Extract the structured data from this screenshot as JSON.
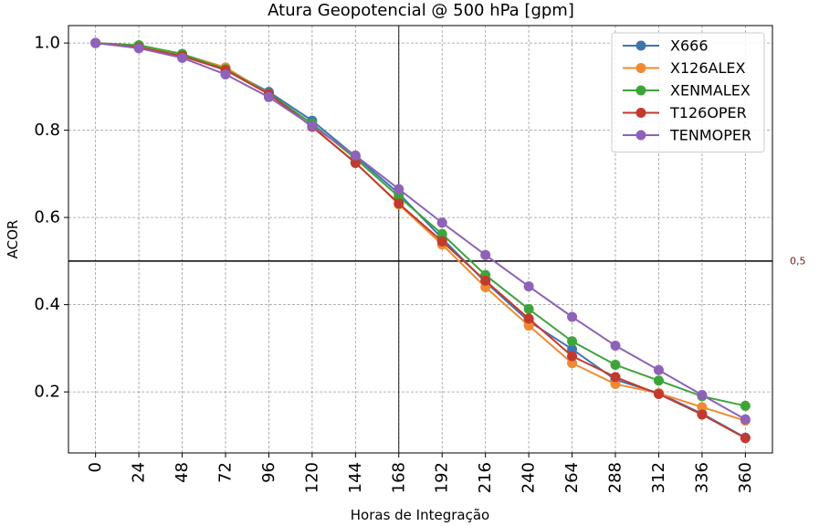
{
  "chart_data": {
    "type": "line",
    "title": "Atura Geopotencial @ 500 hPa [gpm]",
    "xlabel": "Horas de Integração",
    "ylabel": "ACOR",
    "x": [
      0,
      24,
      48,
      72,
      96,
      120,
      144,
      168,
      192,
      216,
      240,
      264,
      288,
      312,
      336,
      360
    ],
    "x_tick_labels": [
      "0",
      "24",
      "48",
      "72",
      "96",
      "120",
      "144",
      "168",
      "192",
      "216",
      "240",
      "264",
      "288",
      "312",
      "336",
      "360"
    ],
    "y_ticks": [
      0.2,
      0.4,
      0.6,
      0.8,
      1.0
    ],
    "y_tick_labels": [
      "0.2",
      "0.4",
      "0.6",
      "0.8",
      "1.0"
    ],
    "xlim": [
      -15,
      375
    ],
    "ylim": [
      0.06,
      1.04
    ],
    "grid": true,
    "legend_position": "top-right",
    "reference_lines": {
      "horizontal": {
        "y": 0.5,
        "label": "0,5",
        "color": "#7a1c1c"
      },
      "vertical": {
        "x": 168
      }
    },
    "series": [
      {
        "name": "X666",
        "color": "#3e75b0",
        "values": [
          1.0,
          0.992,
          0.972,
          0.94,
          0.888,
          0.822,
          0.74,
          0.655,
          0.552,
          0.452,
          0.362,
          0.298,
          0.228,
          0.197,
          0.15,
          0.095
        ]
      },
      {
        "name": "X126ALEX",
        "color": "#f08a32",
        "values": [
          1.0,
          0.993,
          0.974,
          0.944,
          0.884,
          0.808,
          0.726,
          0.63,
          0.538,
          0.44,
          0.352,
          0.266,
          0.218,
          0.197,
          0.165,
          0.134
        ]
      },
      {
        "name": "XENMALEX",
        "color": "#3ea43a",
        "values": [
          1.0,
          0.995,
          0.975,
          0.94,
          0.884,
          0.815,
          0.735,
          0.648,
          0.562,
          0.468,
          0.39,
          0.316,
          0.262,
          0.226,
          0.19,
          0.168
        ]
      },
      {
        "name": "T126OPER",
        "color": "#c23a2e",
        "values": [
          1.0,
          0.99,
          0.97,
          0.938,
          0.883,
          0.808,
          0.725,
          0.632,
          0.545,
          0.455,
          0.368,
          0.282,
          0.234,
          0.195,
          0.148,
          0.094
        ]
      },
      {
        "name": "TENMOPER",
        "color": "#8e62b8",
        "values": [
          1.0,
          0.988,
          0.966,
          0.928,
          0.876,
          0.81,
          0.742,
          0.665,
          0.588,
          0.514,
          0.442,
          0.372,
          0.306,
          0.25,
          0.193,
          0.137
        ]
      }
    ]
  }
}
